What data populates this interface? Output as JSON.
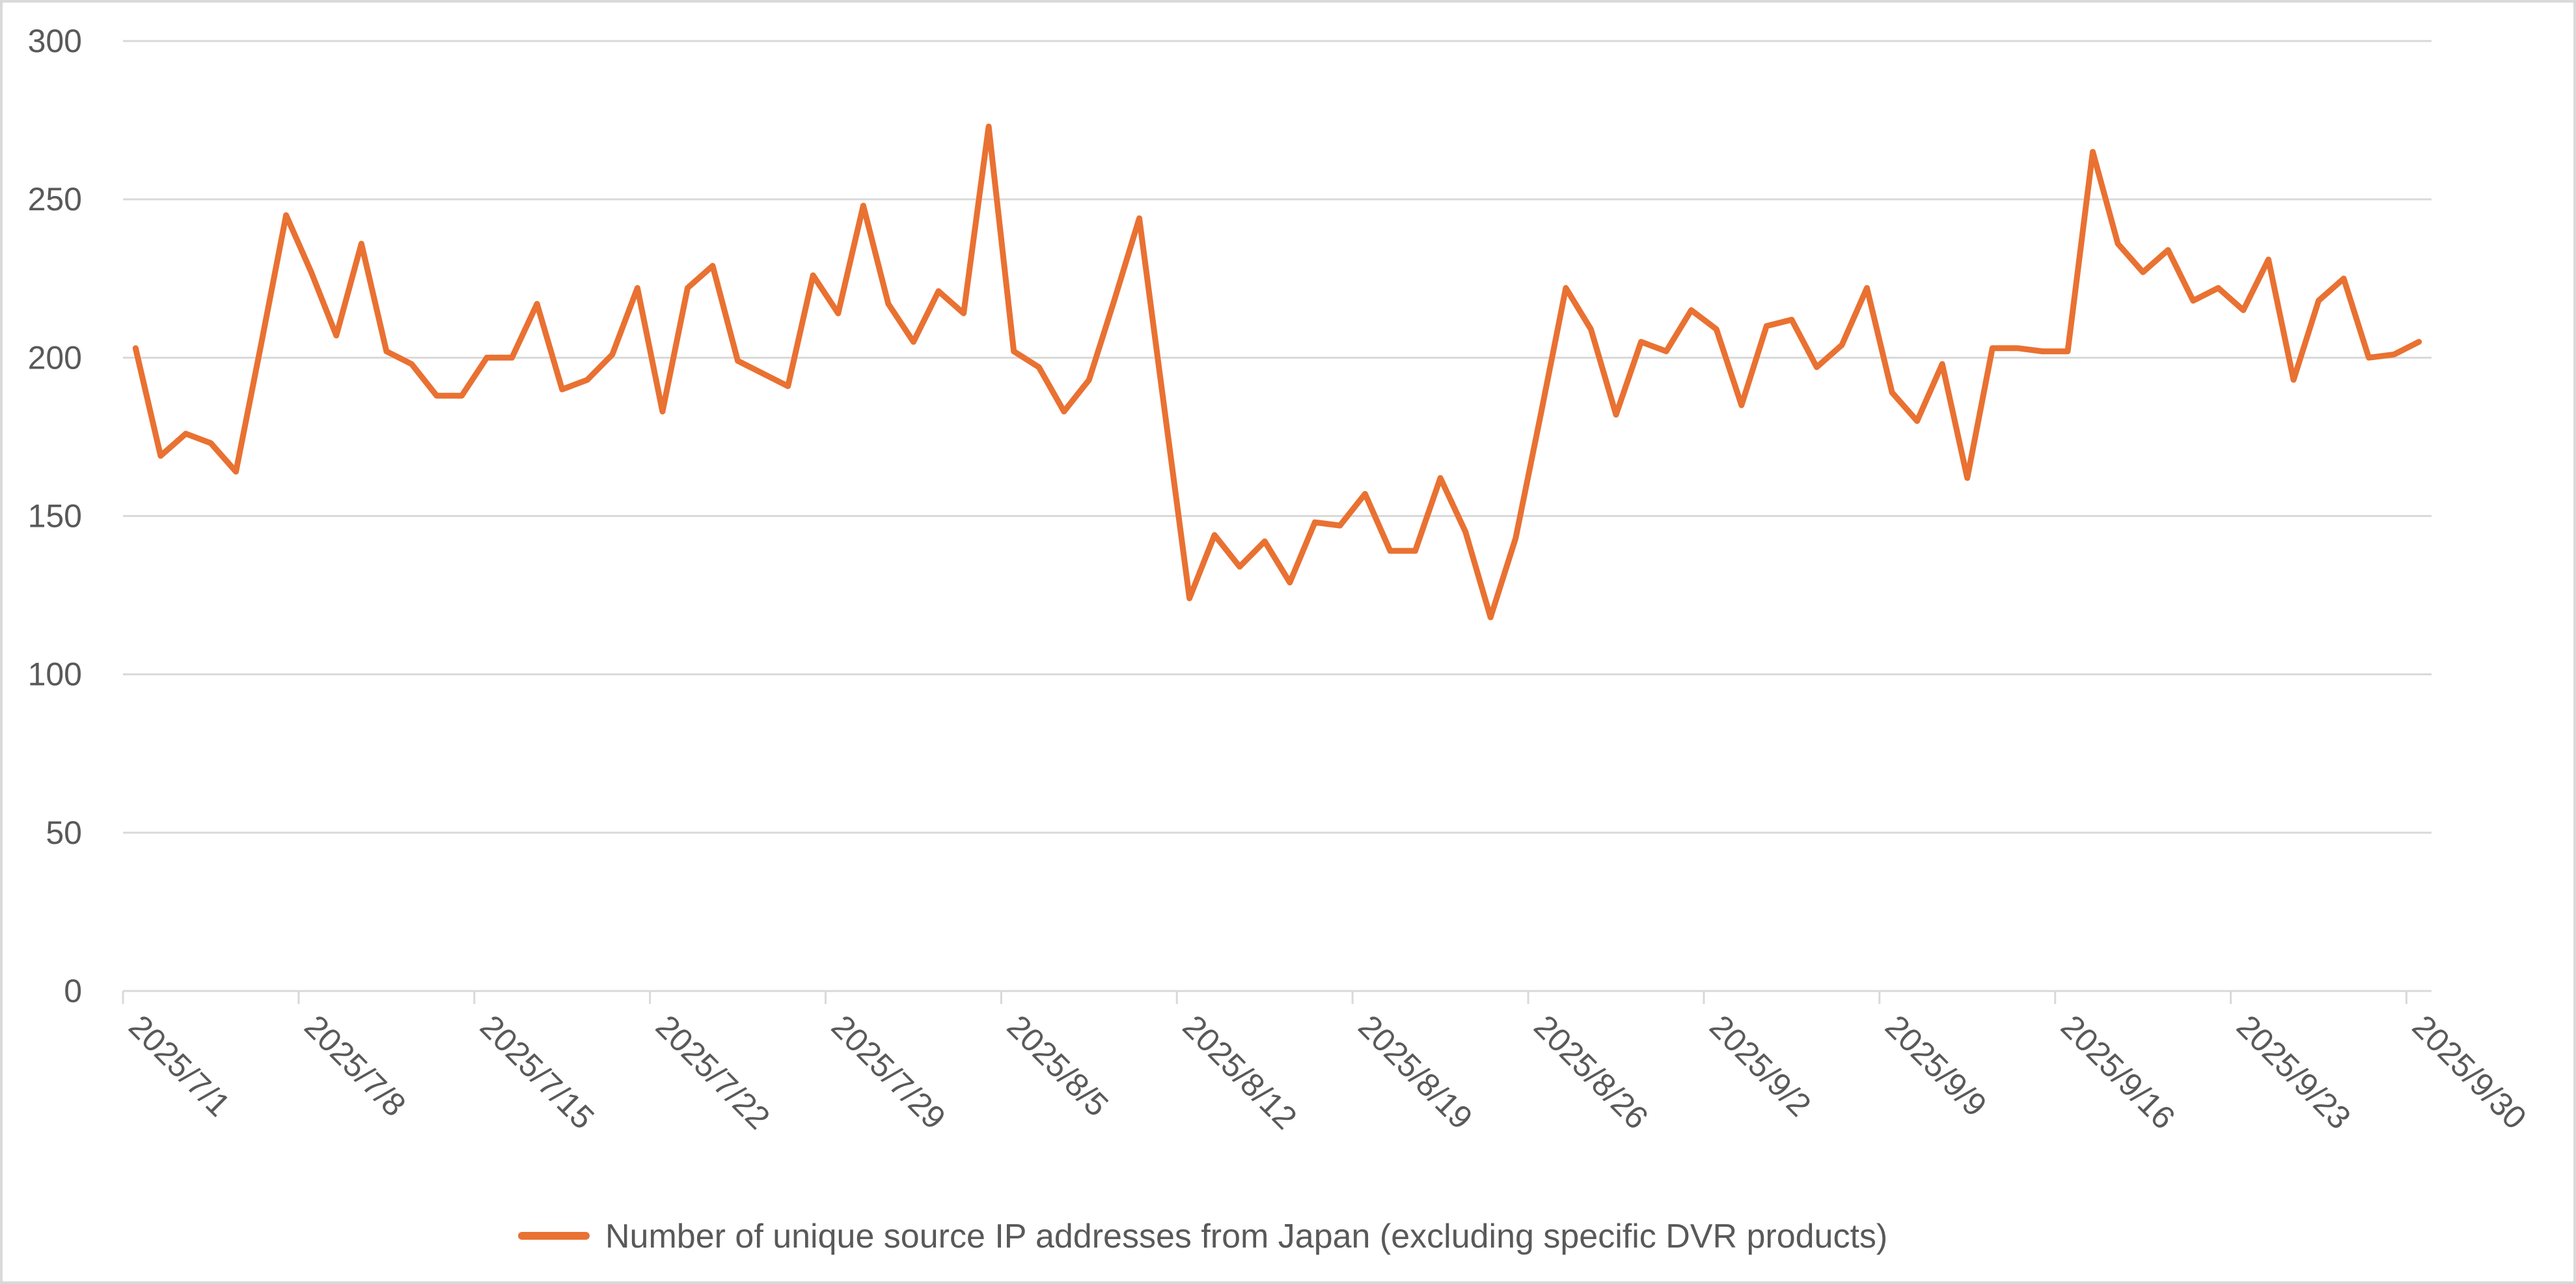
{
  "chart_data": {
    "type": "line",
    "title": "",
    "xlabel": "",
    "ylabel": "",
    "ylim": [
      0,
      300
    ],
    "yticks": [
      0,
      50,
      100,
      150,
      200,
      250,
      300
    ],
    "grid": true,
    "legend_position": "bottom",
    "x_start": "2025/7/1",
    "x_tick_labels": [
      "2025/7/1",
      "2025/7/8",
      "2025/7/15",
      "2025/7/22",
      "2025/7/29",
      "2025/8/5",
      "2025/8/12",
      "2025/8/19",
      "2025/8/26",
      "2025/9/2",
      "2025/9/9",
      "2025/9/16",
      "2025/9/23",
      "2025/9/30"
    ],
    "series": [
      {
        "name": "Number of unique source IP addresses from Japan (excluding specific DVR products)",
        "color": "#E97132",
        "values": [
          203,
          169,
          176,
          173,
          164,
          204,
          245,
          227,
          207,
          236,
          202,
          198,
          188,
          188,
          200,
          200,
          217,
          190,
          193,
          201,
          222,
          183,
          222,
          229,
          199,
          195,
          191,
          226,
          214,
          248,
          217,
          205,
          221,
          214,
          273,
          202,
          197,
          183,
          193,
          218,
          244,
          184,
          124,
          144,
          134,
          142,
          129,
          148,
          147,
          157,
          139,
          139,
          162,
          145,
          118,
          143,
          182,
          222,
          209,
          182,
          205,
          202,
          215,
          209,
          185,
          210,
          212,
          197,
          204,
          222,
          189,
          180,
          198,
          162,
          203,
          203,
          202,
          202,
          265,
          236,
          227,
          234,
          218,
          222,
          215,
          231,
          193,
          218,
          225,
          200,
          201,
          205
        ]
      }
    ]
  }
}
